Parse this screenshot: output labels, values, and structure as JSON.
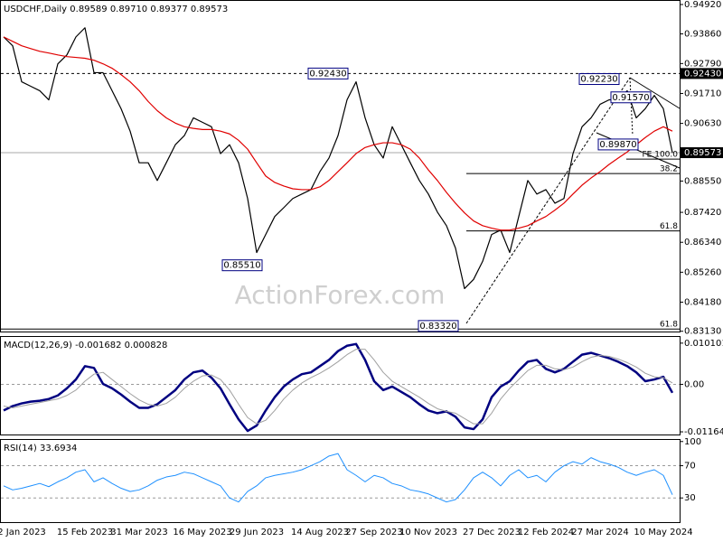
{
  "watermark": "ActionForex.com",
  "chart_data": [
    {
      "type": "line",
      "title": "USDCHF,Daily 0.89589 0.89710 0.89377 0.89573",
      "ylim": [
        0.8312,
        0.9505
      ],
      "yticks": [
        {
          "value": 0.9492,
          "label": "0.94920"
        },
        {
          "value": 0.9386,
          "label": "0.93860"
        },
        {
          "value": 0.9279,
          "label": "0.92790"
        },
        {
          "value": 0.9171,
          "label": "0.91710"
        },
        {
          "value": 0.9063,
          "label": "0.90630"
        },
        {
          "value": 0.8855,
          "label": "0.88550"
        },
        {
          "value": 0.8742,
          "label": "0.87420"
        },
        {
          "value": 0.8634,
          "label": "0.86340"
        },
        {
          "value": 0.8526,
          "label": "0.85260"
        },
        {
          "value": 0.8418,
          "label": "0.84180"
        },
        {
          "value": 0.8313,
          "label": "0.83130"
        }
      ],
      "series": [
        {
          "color": "#000000",
          "values": [
            0.9375,
            0.9343,
            0.9213,
            0.9197,
            0.9181,
            0.9148,
            0.9278,
            0.931,
            0.9375,
            0.9408,
            0.9246,
            0.9246,
            0.9181,
            0.9116,
            0.9035,
            0.8921,
            0.8921,
            0.8857,
            0.8921,
            0.8986,
            0.9019,
            0.9083,
            0.9067,
            0.9051,
            0.8954,
            0.8986,
            0.8921,
            0.8792,
            0.8597,
            0.8662,
            0.8727,
            0.8759,
            0.8792,
            0.8808,
            0.8824,
            0.8889,
            0.8938,
            0.9019,
            0.9148,
            0.9213,
            0.9083,
            0.8986,
            0.8938,
            0.9051,
            0.8986,
            0.8921,
            0.8857,
            0.8808,
            0.8743,
            0.8694,
            0.8613,
            0.8467,
            0.85,
            0.8565,
            0.8662,
            0.8678,
            0.8597,
            0.8727,
            0.8857,
            0.8808,
            0.8824,
            0.8775,
            0.8792,
            0.8954,
            0.9051,
            0.9083,
            0.9132,
            0.9148,
            0.9148,
            0.9181,
            0.9083,
            0.9116,
            0.9164,
            0.9116,
            0.8957
          ]
        },
        {
          "color": "#e00000",
          "values": [
            0.9375,
            0.9359,
            0.9343,
            0.9333,
            0.9323,
            0.9317,
            0.931,
            0.9304,
            0.9301,
            0.9298,
            0.9291,
            0.9278,
            0.9262,
            0.9239,
            0.9213,
            0.9181,
            0.9142,
            0.9109,
            0.9083,
            0.9064,
            0.9051,
            0.9045,
            0.9041,
            0.9041,
            0.9035,
            0.9025,
            0.9002,
            0.897,
            0.8921,
            0.8873,
            0.885,
            0.8837,
            0.8827,
            0.8824,
            0.8824,
            0.8834,
            0.8857,
            0.8889,
            0.8921,
            0.8954,
            0.8976,
            0.8986,
            0.8993,
            0.8993,
            0.8986,
            0.897,
            0.8938,
            0.8895,
            0.8857,
            0.8814,
            0.8775,
            0.874,
            0.8711,
            0.8694,
            0.8685,
            0.8678,
            0.8678,
            0.8685,
            0.8694,
            0.8711,
            0.8727,
            0.875,
            0.8775,
            0.8808,
            0.884,
            0.8866,
            0.8889,
            0.8915,
            0.8938,
            0.896,
            0.8986,
            0.9012,
            0.9035,
            0.9051,
            0.9035
          ]
        }
      ],
      "levels": [
        {
          "value": 0.9243,
          "label": "0.92430"
        }
      ],
      "last_price": {
        "value": 0.89573,
        "label": "0.89573"
      },
      "callouts": [
        {
          "value": 0.9243,
          "label": "0.92430"
        },
        {
          "value": 0.9223,
          "label": "0.92230"
        },
        {
          "value": 0.9157,
          "label": "0.91570"
        },
        {
          "value": 0.8987,
          "label": "0.89870"
        },
        {
          "value": 0.8551,
          "label": "0.85510"
        },
        {
          "value": 0.8332,
          "label": "0.83320"
        }
      ],
      "fib_levels": [
        {
          "name": "FE 100.0",
          "price": 0.8934
        },
        {
          "level": 38.2,
          "price": 0.8882
        },
        {
          "level": 61.8,
          "price": 0.8675
        },
        {
          "level": 61.8,
          "price": 0.8321
        }
      ]
    },
    {
      "type": "line",
      "title": "MACD(12,26,9) -0.001682 0.000828",
      "ylim": [
        -0.0123,
        0.01162
      ],
      "yticks": [
        0.010101,
        {
          "value": 0,
          "label": "0.00"
        },
        -0.011645
      ],
      "reference_lines": [
        0
      ],
      "series": [
        {
          "color": "#000080",
          "width": 2.5,
          "values": [
            -0.00641,
            -0.00533,
            -0.00467,
            -0.00424,
            -0.00402,
            -0.00359,
            -0.00272,
            -0.00098,
            0.0012,
            0.00446,
            0.00402,
            0.00011,
            -0.00098,
            -0.0025,
            -0.00424,
            -0.00576,
            -0.00576,
            -0.00489,
            -0.00315,
            -0.00141,
            0.0012,
            0.00294,
            0.00337,
            0.00163,
            -0.00098,
            -0.00489,
            -0.00859,
            -0.01142,
            -0.01011,
            -0.00641,
            -0.00315,
            -0.00054,
            0.0012,
            0.0025,
            0.00294,
            0.00446,
            0.00598,
            0.00815,
            0.00946,
            0.00989,
            0.00598,
            0.00076,
            -0.00141,
            -0.00054,
            -0.00185,
            -0.00315,
            -0.00489,
            -0.00641,
            -0.00707,
            -0.00663,
            -0.00794,
            -0.01055,
            -0.01098,
            -0.00859,
            -0.00315,
            -0.00054,
            0.00076,
            0.00337,
            0.00554,
            0.00598,
            0.0038,
            0.00294,
            0.0038,
            0.00554,
            0.00728,
            0.00772,
            0.00707,
            0.00641,
            0.00554,
            0.00446,
            0.00294,
            0.00076,
            0.0012,
            0.00185,
            -0.00207
          ]
        },
        {
          "color": "#a0a0a0",
          "width": 1,
          "values": [
            -0.00533,
            -0.00576,
            -0.00533,
            -0.00489,
            -0.00446,
            -0.00402,
            -0.00359,
            -0.00272,
            -0.00141,
            0.00076,
            0.0025,
            0.00294,
            0.0012,
            -0.00054,
            -0.00228,
            -0.00381,
            -0.00489,
            -0.00533,
            -0.00467,
            -0.00315,
            -0.00098,
            0.00076,
            0.00207,
            0.00228,
            0.0012,
            -0.00141,
            -0.00489,
            -0.00815,
            -0.00968,
            -0.00881,
            -0.00641,
            -0.00359,
            -0.00141,
            0.00033,
            0.00163,
            0.00272,
            0.00402,
            0.00554,
            0.00728,
            0.00859,
            0.00859,
            0.00598,
            0.00294,
            0.00076,
            -0.00054,
            -0.00185,
            -0.00315,
            -0.00467,
            -0.00598,
            -0.00663,
            -0.00707,
            -0.00837,
            -0.00968,
            -0.00968,
            -0.00707,
            -0.00359,
            -0.00098,
            0.0012,
            0.00337,
            0.00467,
            0.00467,
            0.0038,
            0.00359,
            0.00424,
            0.00554,
            0.00663,
            0.00707,
            0.00685,
            0.0062,
            0.00533,
            0.00424,
            0.00272,
            0.00185,
            0.00163,
            0.00033
          ]
        }
      ]
    },
    {
      "type": "line",
      "title": "RSI(14) 33.6934",
      "ylim": [
        0,
        102
      ],
      "yticks": [
        100,
        70,
        30
      ],
      "reference_lines": [
        70,
        30
      ],
      "categories": [
        null,
        null,
        "2 Jan 2023",
        null,
        null,
        null,
        null,
        null,
        null,
        "15 Feb 2023",
        null,
        null,
        null,
        null,
        null,
        "31 Mar 2023",
        null,
        null,
        null,
        null,
        null,
        null,
        "16 May 2023",
        null,
        null,
        null,
        null,
        null,
        "29 Jun 2023",
        null,
        null,
        null,
        null,
        null,
        null,
        "14 Aug 2023",
        null,
        null,
        null,
        null,
        null,
        "27 Sep 2023",
        null,
        null,
        null,
        null,
        null,
        "10 Nov 2023",
        null,
        null,
        null,
        null,
        null,
        null,
        "27 Dec 2023",
        null,
        null,
        null,
        null,
        null,
        "12 Feb 2024",
        null,
        null,
        null,
        null,
        null,
        "27 Mar 2024",
        null,
        null,
        null,
        null,
        null,
        null,
        "10 May 2024",
        null
      ],
      "series": [
        {
          "color": "#1e90ff",
          "width": 1,
          "values": [
            45,
            40,
            42,
            45,
            48,
            44,
            50,
            55,
            62,
            65,
            50,
            55,
            48,
            42,
            38,
            40,
            45,
            52,
            56,
            58,
            62,
            60,
            55,
            50,
            45,
            30,
            25,
            38,
            45,
            55,
            58,
            60,
            62,
            65,
            70,
            75,
            82,
            85,
            65,
            58,
            50,
            58,
            55,
            48,
            45,
            40,
            38,
            35,
            30,
            25,
            28,
            40,
            55,
            62,
            55,
            45,
            58,
            65,
            55,
            58,
            50,
            62,
            70,
            75,
            72,
            80,
            75,
            72,
            68,
            62,
            58,
            62,
            65,
            58,
            34
          ]
        }
      ]
    }
  ]
}
